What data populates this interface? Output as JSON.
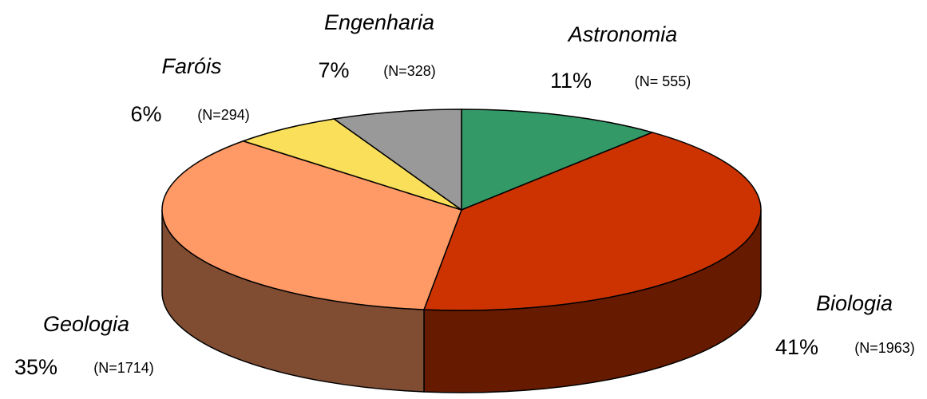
{
  "chart_data": {
    "type": "pie3d",
    "categories": [
      "Astronomia",
      "Biologia",
      "Geologia",
      "Faróis",
      "Engenharia"
    ],
    "values": [
      11,
      41,
      35,
      6,
      7
    ],
    "value_labels": [
      "11%",
      "41%",
      "35%",
      "6%",
      "7%"
    ],
    "counts": [
      555,
      1963,
      1714,
      294,
      328
    ],
    "count_labels": [
      "(N= 555)",
      "(N=1963)",
      "(N=1714)",
      "(N=294)",
      "(N=328)"
    ],
    "colors": [
      "#339966",
      "#cc3300",
      "#ff9966",
      "#f9df5a",
      "#999999"
    ],
    "side_colors": [
      "#1f5c3d",
      "#661a00",
      "#804d33",
      "#95862f",
      "#5c5c5c"
    ]
  }
}
